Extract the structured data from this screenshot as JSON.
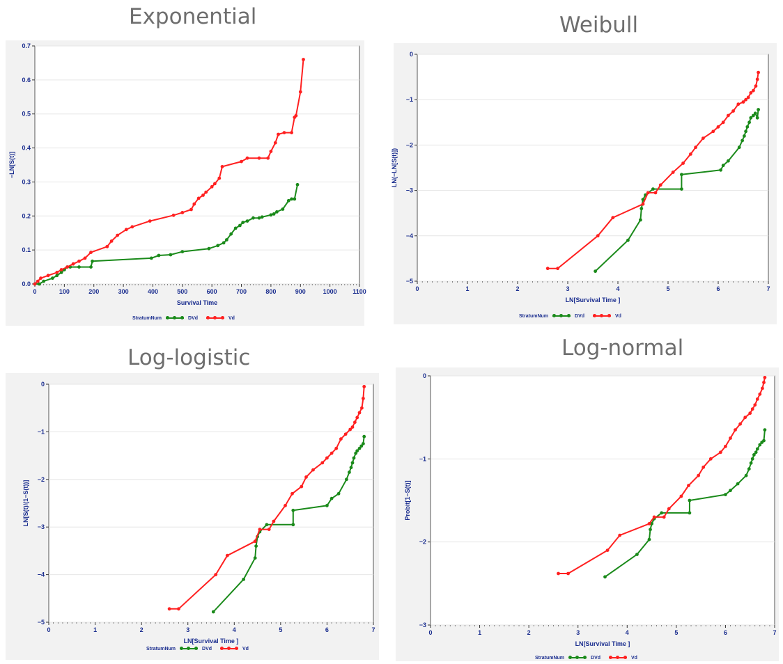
{
  "colors": {
    "DVd": "#1a8a1a",
    "Vd": "#ff2020",
    "axis_text": "#1b2e8f",
    "title": "#6e6e6e"
  },
  "panels": [
    {
      "title": "Exponential",
      "xlabel": "Survival Time",
      "ylabel": "−LN[S(t)]",
      "legend_label": "StratumNum",
      "legend_items": [
        "DVd",
        "Vd"
      ]
    },
    {
      "title": "Weibull",
      "xlabel": "LN[Survival Time ]",
      "ylabel": "LN(−LN[S(t)])",
      "legend_label": "StratumNum",
      "legend_items": [
        "DVd",
        "Vd"
      ]
    },
    {
      "title": "Log-logistic",
      "xlabel": "LN[Survival Time ]",
      "ylabel": "LN[S(t)/(1−S(t))]",
      "legend_label": "StratumNum",
      "legend_items": [
        "DVd",
        "Vd"
      ]
    },
    {
      "title": "Log-normal",
      "xlabel": "LN[Survival Time ]",
      "ylabel": "Probit[1−S(t)]",
      "legend_label": "StratumNum",
      "legend_items": [
        "DVd",
        "Vd"
      ]
    }
  ],
  "chart_data": [
    {
      "type": "line",
      "title": "Exponential",
      "xlabel": "Survival Time",
      "ylabel": "−LN[S(t)]",
      "xlim": [
        0,
        1100
      ],
      "ylim": [
        0,
        0.7
      ],
      "xticks": [
        0,
        100,
        200,
        300,
        400,
        500,
        600,
        700,
        800,
        900,
        1000,
        1100
      ],
      "yticks": [
        0,
        0.1,
        0.2,
        0.3,
        0.4,
        0.5,
        0.6,
        0.7
      ],
      "xticklabels": [
        "0",
        "100",
        "200",
        "300",
        "400",
        "500",
        "600",
        "700",
        "800",
        "900",
        "1000",
        "1100"
      ],
      "yticklabels": [
        "0.0",
        "0.1",
        "0.2",
        "0.3",
        "0.4",
        "0.5",
        "0.6",
        "0.7"
      ],
      "grid": true,
      "legend": "bottom",
      "series": [
        {
          "name": "DVd",
          "x": [
            0,
            15,
            30,
            60,
            75,
            90,
            100,
            110,
            120,
            150,
            190,
            195,
            395,
            420,
            460,
            500,
            590,
            620,
            640,
            650,
            665,
            680,
            695,
            705,
            720,
            740,
            760,
            770,
            800,
            810,
            820,
            840,
            860,
            870,
            880,
            890
          ],
          "y": [
            0,
            0,
            0.008,
            0.017,
            0.025,
            0.034,
            0.042,
            0.05,
            0.05,
            0.05,
            0.05,
            0.067,
            0.076,
            0.084,
            0.086,
            0.095,
            0.104,
            0.113,
            0.121,
            0.13,
            0.147,
            0.164,
            0.172,
            0.181,
            0.185,
            0.194,
            0.194,
            0.197,
            0.203,
            0.206,
            0.212,
            0.22,
            0.245,
            0.25,
            0.25,
            0.292
          ]
        },
        {
          "name": "Vd",
          "x": [
            0,
            10,
            20,
            45,
            75,
            90,
            110,
            130,
            150,
            170,
            190,
            245,
            260,
            280,
            310,
            330,
            390,
            470,
            500,
            530,
            540,
            555,
            570,
            580,
            600,
            610,
            625,
            635,
            700,
            720,
            760,
            790,
            800,
            815,
            825,
            845,
            870,
            880,
            885,
            900,
            910
          ],
          "y": [
            0,
            0.008,
            0.017,
            0.025,
            0.034,
            0.042,
            0.05,
            0.059,
            0.067,
            0.076,
            0.093,
            0.11,
            0.126,
            0.143,
            0.16,
            0.168,
            0.185,
            0.202,
            0.21,
            0.219,
            0.235,
            0.252,
            0.261,
            0.27,
            0.286,
            0.295,
            0.311,
            0.345,
            0.36,
            0.37,
            0.37,
            0.37,
            0.39,
            0.415,
            0.44,
            0.445,
            0.445,
            0.49,
            0.495,
            0.565,
            0.66
          ]
        }
      ]
    },
    {
      "type": "line",
      "title": "Weibull",
      "xlabel": "LN[Survival Time ]",
      "ylabel": "LN(−LN[S(t)])",
      "xlim": [
        0,
        7
      ],
      "ylim": [
        -5,
        0
      ],
      "xticks": [
        0,
        1,
        2,
        3,
        4,
        5,
        6,
        7
      ],
      "yticks": [
        -5,
        -4,
        -3,
        -2,
        -1,
        0
      ],
      "xticklabels": [
        "0",
        "1",
        "2",
        "3",
        "4",
        "5",
        "6",
        "7"
      ],
      "yticklabels": [
        "−5",
        "−4",
        "−3",
        "−2",
        "−1",
        "0"
      ],
      "grid": true,
      "legend": "bottom",
      "series": [
        {
          "name": "DVd",
          "x": [
            3.55,
            4.2,
            4.45,
            4.47,
            4.5,
            4.55,
            4.7,
            5.27,
            5.27,
            6.05,
            6.1,
            6.2,
            6.42,
            6.48,
            6.52,
            6.55,
            6.58,
            6.62,
            6.65,
            6.7,
            6.74,
            6.78,
            6.8
          ],
          "y": [
            -4.78,
            -4.1,
            -3.65,
            -3.4,
            -3.2,
            -3.1,
            -2.97,
            -2.97,
            -2.65,
            -2.55,
            -2.45,
            -2.35,
            -2.05,
            -1.9,
            -1.8,
            -1.7,
            -1.6,
            -1.5,
            -1.4,
            -1.35,
            -1.3,
            -1.4,
            -1.22
          ]
        },
        {
          "name": "Vd",
          "x": [
            2.6,
            2.8,
            3.6,
            3.9,
            4.5,
            4.6,
            4.75,
            4.85,
            5.1,
            5.3,
            5.45,
            5.55,
            5.7,
            5.9,
            6.0,
            6.1,
            6.2,
            6.3,
            6.4,
            6.5,
            6.55,
            6.6,
            6.65,
            6.7,
            6.75,
            6.78,
            6.8
          ],
          "y": [
            -4.72,
            -4.72,
            -4.0,
            -3.6,
            -3.3,
            -3.05,
            -3.05,
            -2.88,
            -2.6,
            -2.4,
            -2.2,
            -2.05,
            -1.85,
            -1.7,
            -1.6,
            -1.5,
            -1.35,
            -1.25,
            -1.1,
            -1.05,
            -1.0,
            -0.95,
            -0.85,
            -0.8,
            -0.7,
            -0.55,
            -0.4
          ]
        }
      ]
    },
    {
      "type": "line",
      "title": "Log-logistic",
      "xlabel": "LN[Survival Time ]",
      "ylabel": "LN[S(t)/(1−S(t))]",
      "xlim": [
        0,
        7
      ],
      "ylim": [
        -5,
        0
      ],
      "xticks": [
        0,
        1,
        2,
        3,
        4,
        5,
        6,
        7
      ],
      "yticks": [
        -5,
        -4,
        -3,
        -2,
        -1,
        0
      ],
      "xticklabels": [
        "0",
        "1",
        "2",
        "3",
        "4",
        "5",
        "6",
        "7"
      ],
      "yticklabels": [
        "−5",
        "−4",
        "−3",
        "−2",
        "−1",
        "0"
      ],
      "grid": true,
      "legend": "bottom",
      "series": [
        {
          "name": "DVd",
          "x": [
            3.55,
            4.2,
            4.45,
            4.47,
            4.5,
            4.55,
            4.7,
            5.27,
            5.27,
            6.0,
            6.1,
            6.25,
            6.42,
            6.48,
            6.52,
            6.55,
            6.58,
            6.62,
            6.65,
            6.7,
            6.74,
            6.78,
            6.8
          ],
          "y": [
            -4.78,
            -4.1,
            -3.65,
            -3.4,
            -3.2,
            -3.1,
            -2.95,
            -2.95,
            -2.65,
            -2.55,
            -2.4,
            -2.3,
            -2.0,
            -1.85,
            -1.75,
            -1.65,
            -1.55,
            -1.45,
            -1.4,
            -1.35,
            -1.3,
            -1.25,
            -1.1
          ]
        },
        {
          "name": "Vd",
          "x": [
            2.6,
            2.8,
            3.6,
            3.85,
            4.45,
            4.55,
            4.75,
            4.85,
            5.1,
            5.25,
            5.45,
            5.55,
            5.7,
            5.9,
            6.0,
            6.1,
            6.2,
            6.3,
            6.4,
            6.5,
            6.55,
            6.6,
            6.65,
            6.7,
            6.75,
            6.78,
            6.8
          ],
          "y": [
            -4.72,
            -4.72,
            -4.0,
            -3.6,
            -3.3,
            -3.05,
            -3.05,
            -2.88,
            -2.55,
            -2.3,
            -2.15,
            -1.95,
            -1.8,
            -1.65,
            -1.55,
            -1.45,
            -1.35,
            -1.15,
            -1.05,
            -0.95,
            -0.9,
            -0.8,
            -0.7,
            -0.6,
            -0.5,
            -0.3,
            -0.05
          ]
        }
      ]
    },
    {
      "type": "line",
      "title": "Log-normal",
      "xlabel": "LN[Survival Time ]",
      "ylabel": "Probit[1−S(t)]",
      "xlim": [
        0,
        7
      ],
      "ylim": [
        -3,
        0
      ],
      "xticks": [
        0,
        1,
        2,
        3,
        4,
        5,
        6,
        7
      ],
      "yticks": [
        -3,
        -2,
        -1,
        0
      ],
      "xticklabels": [
        "0",
        "1",
        "2",
        "3",
        "4",
        "5",
        "6",
        "7"
      ],
      "yticklabels": [
        "−3",
        "−2",
        "−1",
        "0"
      ],
      "grid": true,
      "legend": "bottom",
      "series": [
        {
          "name": "DVd",
          "x": [
            3.55,
            4.2,
            4.45,
            4.47,
            4.5,
            4.55,
            4.7,
            5.27,
            5.27,
            6.0,
            6.1,
            6.25,
            6.42,
            6.48,
            6.52,
            6.55,
            6.58,
            6.62,
            6.65,
            6.7,
            6.74,
            6.78,
            6.8
          ],
          "y": [
            -2.42,
            -2.15,
            -1.97,
            -1.85,
            -1.78,
            -1.72,
            -1.65,
            -1.65,
            -1.5,
            -1.43,
            -1.38,
            -1.3,
            -1.2,
            -1.12,
            -1.05,
            -1.0,
            -0.95,
            -0.92,
            -0.88,
            -0.83,
            -0.8,
            -0.78,
            -0.65
          ]
        },
        {
          "name": "Vd",
          "x": [
            2.6,
            2.8,
            3.6,
            3.85,
            4.45,
            4.55,
            4.75,
            4.85,
            5.1,
            5.25,
            5.45,
            5.55,
            5.7,
            5.9,
            6.0,
            6.1,
            6.2,
            6.3,
            6.4,
            6.5,
            6.55,
            6.6,
            6.65,
            6.7,
            6.75,
            6.78,
            6.8
          ],
          "y": [
            -2.38,
            -2.38,
            -2.1,
            -1.92,
            -1.78,
            -1.7,
            -1.7,
            -1.6,
            -1.45,
            -1.32,
            -1.2,
            -1.1,
            -1.0,
            -0.92,
            -0.85,
            -0.75,
            -0.65,
            -0.58,
            -0.5,
            -0.45,
            -0.4,
            -0.35,
            -0.28,
            -0.22,
            -0.15,
            -0.08,
            -0.02
          ]
        }
      ]
    }
  ]
}
